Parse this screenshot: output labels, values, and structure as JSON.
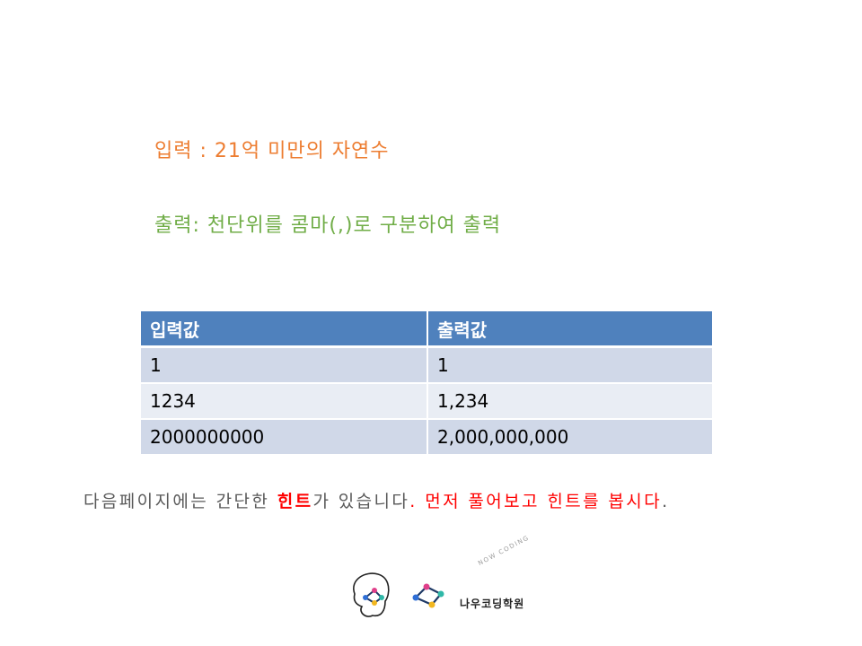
{
  "requirements": {
    "input": "입력 : 21억 미만의 자연수",
    "output": "출력: 천단위를 콤마(,)로 구분하여 출력"
  },
  "table": {
    "headers": [
      "입력값",
      "출력값"
    ],
    "rows": [
      [
        "1",
        "1"
      ],
      [
        "1234",
        "1,234"
      ],
      [
        "2000000000",
        "2,000,000,000"
      ]
    ],
    "header_color": "#4F81BD",
    "row_colors": [
      "#D0D8E8",
      "#E9EDF4"
    ]
  },
  "hint": {
    "part1": "다음페이지에는 간단한 ",
    "part2": "힌트",
    "part3": "가 있습니다",
    "part4": ".",
    "part5": " 먼저 풀어보고 힌트를 봅시다",
    "part6": "."
  },
  "logo": {
    "name": "나우코딩학원",
    "arc_text": "NOW CODING",
    "icon": "now-coding-logo-icon"
  },
  "colors": {
    "input_text": "#ED7D31",
    "output_text": "#70AD47",
    "hint_text": "#595959",
    "highlight": "#FF0000"
  }
}
